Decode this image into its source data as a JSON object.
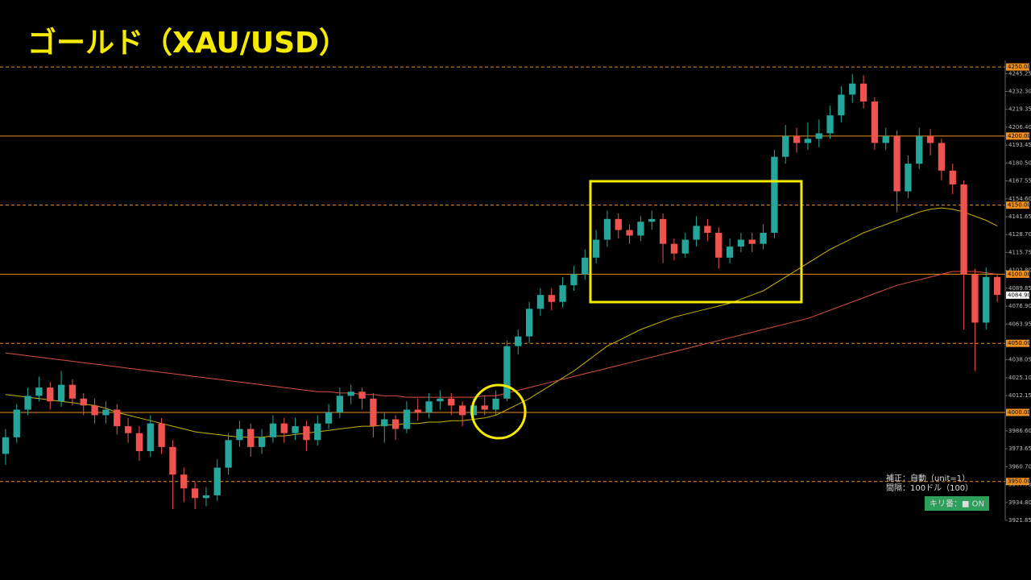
{
  "chart_data": {
    "type": "candlestick",
    "title": "ゴールド（XAU/USD）",
    "up_color": "#26a69a",
    "down_color": "#ef5350",
    "open": [
      3970,
      3982,
      4002,
      4012,
      4018,
      4008,
      4020,
      4010,
      4005,
      3998,
      4002,
      3990,
      3985,
      3972,
      3992,
      3975,
      3955,
      3945,
      3938,
      3940,
      3960,
      3980,
      3988,
      3975,
      3982,
      3992,
      3985,
      3990,
      3980,
      3992,
      4000,
      4012,
      4015,
      4010,
      3990,
      3995,
      3988,
      4002,
      4000,
      4008,
      4010,
      4005,
      3998,
      4005,
      4002,
      4010,
      4048,
      4055,
      4075,
      4085,
      4080,
      4092,
      4100,
      4112,
      4125,
      4140,
      4132,
      4128,
      4138,
      4140,
      4122,
      4115,
      4125,
      4135,
      4130,
      4112,
      4120,
      4125,
      4122,
      4130,
      4185,
      4200,
      4195,
      4198,
      4202,
      4215,
      4230,
      4238,
      4225,
      4195,
      4200,
      4160,
      4180,
      4200,
      4195,
      4175,
      4165,
      4100,
      4065,
      4098
    ],
    "high": [
      3988,
      4006,
      4018,
      4026,
      4022,
      4030,
      4024,
      4014,
      4010,
      4008,
      4006,
      3996,
      3990,
      3998,
      3996,
      3980,
      3960,
      3950,
      3946,
      3966,
      3985,
      3994,
      3992,
      3988,
      3998,
      3996,
      3996,
      3994,
      3998,
      4006,
      4018,
      4020,
      4018,
      4014,
      4000,
      3998,
      4008,
      4010,
      4014,
      4016,
      4014,
      4008,
      4010,
      4012,
      4016,
      4052,
      4060,
      4080,
      4090,
      4090,
      4098,
      4106,
      4118,
      4132,
      4146,
      4144,
      4136,
      4142,
      4146,
      4144,
      4126,
      4130,
      4142,
      4140,
      4134,
      4126,
      4130,
      4130,
      4136,
      4190,
      4208,
      4206,
      4210,
      4212,
      4222,
      4236,
      4245,
      4244,
      4228,
      4206,
      4204,
      4186,
      4206,
      4205,
      4198,
      4180,
      4168,
      4104,
      4105,
      4100
    ],
    "low": [
      3962,
      3978,
      3998,
      4008,
      4002,
      4004,
      4005,
      3998,
      3992,
      3992,
      3984,
      3978,
      3965,
      3968,
      3970,
      3930,
      3935,
      3930,
      3932,
      3936,
      3955,
      3975,
      3968,
      3970,
      3978,
      3978,
      3980,
      3972,
      3976,
      3988,
      3996,
      4006,
      4002,
      3982,
      3978,
      3980,
      3985,
      3994,
      3996,
      4002,
      3998,
      3990,
      3994,
      3998,
      3998,
      4008,
      4042,
      4050,
      4070,
      4074,
      4076,
      4088,
      4096,
      4108,
      4120,
      4126,
      4122,
      4124,
      4132,
      4108,
      4110,
      4112,
      4120,
      4124,
      4104,
      4108,
      4116,
      4116,
      4118,
      4126,
      4180,
      4188,
      4190,
      4192,
      4198,
      4210,
      4224,
      4220,
      4190,
      4190,
      4145,
      4155,
      4176,
      4186,
      4168,
      4158,
      4060,
      4030,
      4060,
      4080
    ],
    "close": [
      3982,
      4002,
      4012,
      4018,
      4008,
      4020,
      4010,
      4005,
      3998,
      4002,
      3990,
      3985,
      3972,
      3992,
      3975,
      3955,
      3945,
      3938,
      3940,
      3960,
      3980,
      3988,
      3975,
      3982,
      3992,
      3985,
      3990,
      3980,
      3992,
      4000,
      4012,
      4015,
      4010,
      3990,
      3995,
      3988,
      4002,
      4000,
      4008,
      4010,
      4005,
      3998,
      4005,
      4002,
      4010,
      4048,
      4055,
      4075,
      4085,
      4080,
      4092,
      4100,
      4112,
      4125,
      4140,
      4132,
      4128,
      4138,
      4140,
      4122,
      4115,
      4125,
      4135,
      4130,
      4112,
      4120,
      4125,
      4122,
      4130,
      4185,
      4200,
      4195,
      4198,
      4202,
      4215,
      4230,
      4238,
      4225,
      4195,
      4200,
      4160,
      4180,
      4200,
      4195,
      4175,
      4165,
      4100,
      4065,
      4098,
      4085
    ],
    "lines": [
      {
        "color": "#c8b400",
        "values": [
          4013,
          4012,
          4011,
          4010,
          4009,
          4008,
          4007,
          4006,
          4005,
          4003,
          4000,
          3998,
          3996,
          3994,
          3992,
          3990,
          3988,
          3986,
          3985,
          3984,
          3983,
          3982,
          3982,
          3982,
          3983,
          3983,
          3984,
          3985,
          3986,
          3987,
          3988,
          3989,
          3990,
          3990,
          3991,
          3991,
          3992,
          3992,
          3993,
          3993,
          3994,
          3994,
          3995,
          3996,
          3998,
          4002,
          4006,
          4010,
          4015,
          4020,
          4025,
          4030,
          4036,
          4042,
          4048,
          4052,
          4056,
          4060,
          4063,
          4066,
          4069,
          4071,
          4073,
          4075,
          4077,
          4079,
          4082,
          4085,
          4088,
          4093,
          4098,
          4103,
          4108,
          4113,
          4118,
          4122,
          4126,
          4130,
          4133,
          4136,
          4139,
          4142,
          4145,
          4147,
          4148,
          4147,
          4145,
          4142,
          4139,
          4135
        ]
      },
      {
        "color": "#d9503f",
        "values": [
          4043,
          4042,
          4041,
          4040,
          4039,
          4038,
          4037,
          4036,
          4035,
          4034,
          4033,
          4032,
          4031,
          4030,
          4029,
          4028,
          4027,
          4026,
          4025,
          4024,
          4023,
          4022,
          4021,
          4020,
          4019,
          4018,
          4017,
          4016,
          4015,
          4015,
          4014,
          4014,
          4013,
          4013,
          4012,
          4012,
          4011,
          4011,
          4011,
          4011,
          4011,
          4011,
          4011,
          4012,
          4012,
          4014,
          4016,
          4018,
          4020,
          4022,
          4024,
          4026,
          4028,
          4030,
          4032,
          4034,
          4036,
          4038,
          4040,
          4042,
          4044,
          4046,
          4048,
          4050,
          4052,
          4054,
          4056,
          4058,
          4060,
          4062,
          4064,
          4066,
          4068,
          4071,
          4074,
          4077,
          4080,
          4083,
          4086,
          4089,
          4092,
          4094,
          4096,
          4098,
          4100,
          4102,
          4102,
          4102,
          4101,
          4100
        ]
      }
    ],
    "ylim": [
      3921.85,
      4254.75
    ],
    "yticks": [
      4245.25,
      {
        "value": 4232.3,
        "label": "4232.30"
      },
      4219.35,
      {
        "value": 4206.4,
        "label": "4206.40"
      },
      4193.45,
      {
        "value": 4180.5,
        "label": "4180.50"
      },
      4167.55,
      {
        "value": 4154.6,
        "label": "4154.60"
      },
      4141.65,
      {
        "value": 4128.7,
        "label": "4128.70"
      },
      4115.75,
      {
        "value": 4102.8,
        "label": "4102.80"
      },
      4089.85,
      {
        "value": 4076.9,
        "label": "4076.90"
      },
      4063.95,
      4038.05,
      {
        "value": 4025.1,
        "label": "4025.10"
      },
      4012.15,
      {
        "value": 3986.6,
        "label": "3986.60"
      },
      3973.65,
      {
        "value": 3960.7,
        "label": "3960.70"
      },
      3947.75,
      {
        "value": 3934.8,
        "label": "3934.80"
      },
      3921.85
    ],
    "levels": [
      {
        "value": 4250,
        "label": "4250.00",
        "style": "dashed"
      },
      {
        "value": 4200,
        "label": "4200.00",
        "style": "solid"
      },
      {
        "value": 4150,
        "label": "4150.00",
        "style": "dashed"
      },
      {
        "value": 4100,
        "label": "4100.00",
        "style": "solid"
      },
      {
        "value": 4050,
        "label": "4050.00",
        "style": "dashed"
      },
      {
        "value": 4000,
        "label": "4000.00",
        "style": "solid"
      },
      {
        "value": 3950,
        "label": "3950.00",
        "style": "dashed"
      }
    ],
    "level_color": "#f0901e",
    "last_price": {
      "value": 4084.9,
      "label": "4084.90"
    },
    "info": [
      "補正：自動（unit=1）",
      "間隔：100ドル（100）"
    ],
    "toggle": "キリ番：■ ON"
  }
}
